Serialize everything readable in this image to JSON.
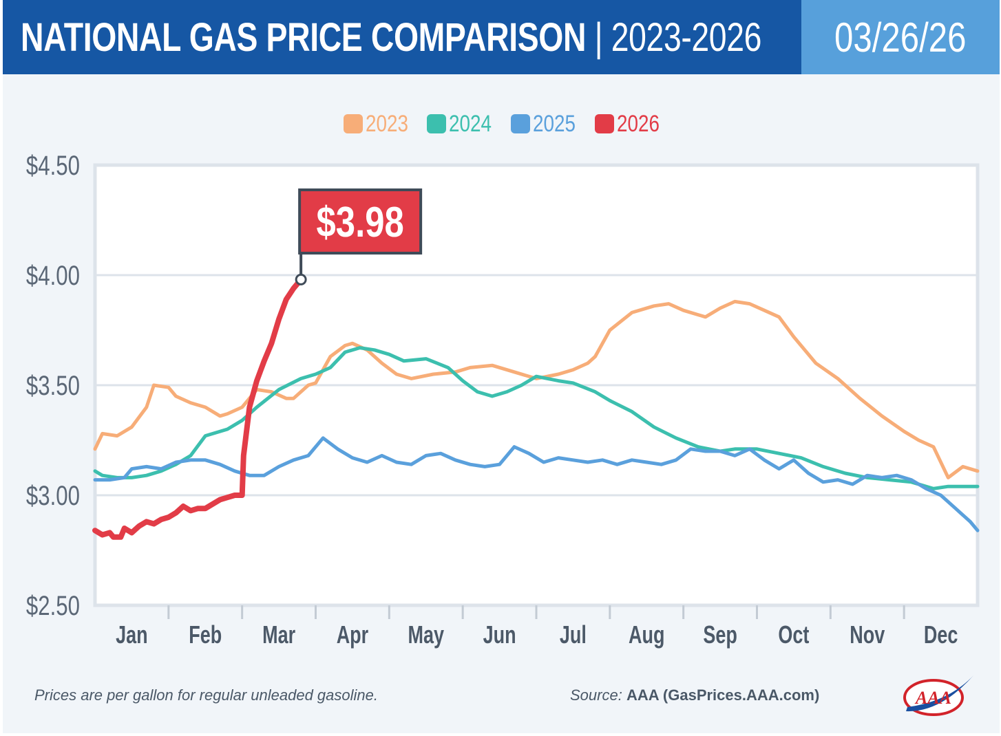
{
  "header": {
    "title": "NATIONAL GAS PRICE COMPARISON",
    "separator": "|",
    "years": "2023-2026",
    "date": "03/26/26",
    "title_bg": "#1657a4",
    "date_bg": "#57a0db"
  },
  "chart_data": {
    "type": "line",
    "title": "",
    "xlabel": "",
    "ylabel": "",
    "x_tick_labels": [
      "Jan",
      "Feb",
      "Mar",
      "Apr",
      "May",
      "Jun",
      "Jul",
      "Aug",
      "Sep",
      "Oct",
      "Nov",
      "Dec"
    ],
    "y_tick_labels": [
      "$4.50",
      "$4.00",
      "$3.50",
      "$3.00",
      "$2.50"
    ],
    "ylim": [
      2.5,
      4.5
    ],
    "xlim": [
      0,
      12
    ],
    "x_unit": "month of year (0 = Jan 1, 12 = Dec 31)",
    "grid": {
      "horizontal": true,
      "vertical": false
    },
    "legend": {
      "placement": "top-center",
      "labels": [
        "2023",
        "2024",
        "2025",
        "2026"
      ]
    },
    "series": [
      {
        "name": "2023",
        "color": "#f7ad78",
        "x": [
          0,
          0.1,
          0.3,
          0.5,
          0.7,
          0.8,
          1.0,
          1.1,
          1.3,
          1.5,
          1.7,
          1.8,
          2.0,
          2.2,
          2.4,
          2.6,
          2.7,
          2.9,
          3.0,
          3.2,
          3.4,
          3.5,
          3.7,
          3.9,
          4.1,
          4.3,
          4.6,
          4.9,
          5.1,
          5.4,
          5.7,
          6.0,
          6.3,
          6.5,
          6.7,
          6.8,
          7.0,
          7.3,
          7.6,
          7.8,
          8.0,
          8.2,
          8.3,
          8.5,
          8.7,
          8.9,
          9.1,
          9.3,
          9.5,
          9.8,
          10.1,
          10.4,
          10.7,
          11.0,
          11.2,
          11.4,
          11.6,
          11.8,
          12.0
        ],
        "values": [
          3.21,
          3.28,
          3.27,
          3.31,
          3.4,
          3.5,
          3.49,
          3.45,
          3.42,
          3.4,
          3.36,
          3.37,
          3.4,
          3.48,
          3.47,
          3.44,
          3.44,
          3.5,
          3.51,
          3.63,
          3.68,
          3.69,
          3.66,
          3.6,
          3.55,
          3.53,
          3.55,
          3.56,
          3.58,
          3.59,
          3.56,
          3.53,
          3.55,
          3.57,
          3.6,
          3.63,
          3.75,
          3.83,
          3.86,
          3.87,
          3.84,
          3.82,
          3.81,
          3.85,
          3.88,
          3.87,
          3.84,
          3.81,
          3.72,
          3.6,
          3.53,
          3.44,
          3.36,
          3.29,
          3.25,
          3.22,
          3.08,
          3.13,
          3.11
        ]
      },
      {
        "name": "2024",
        "color": "#3cbfae",
        "x": [
          0,
          0.1,
          0.3,
          0.5,
          0.7,
          0.9,
          1.1,
          1.3,
          1.5,
          1.8,
          2.0,
          2.2,
          2.5,
          2.8,
          3.0,
          3.2,
          3.4,
          3.6,
          3.8,
          4.0,
          4.2,
          4.5,
          4.8,
          5.0,
          5.2,
          5.4,
          5.6,
          5.8,
          6.0,
          6.3,
          6.5,
          6.8,
          7.0,
          7.3,
          7.6,
          7.9,
          8.2,
          8.5,
          8.7,
          9.0,
          9.3,
          9.6,
          9.9,
          10.2,
          10.5,
          10.8,
          11.1,
          11.4,
          11.6,
          11.8,
          12.0
        ],
        "values": [
          3.11,
          3.09,
          3.08,
          3.08,
          3.09,
          3.11,
          3.14,
          3.18,
          3.27,
          3.3,
          3.34,
          3.4,
          3.48,
          3.53,
          3.55,
          3.58,
          3.65,
          3.67,
          3.66,
          3.64,
          3.61,
          3.62,
          3.58,
          3.52,
          3.47,
          3.45,
          3.47,
          3.5,
          3.54,
          3.52,
          3.51,
          3.47,
          3.43,
          3.38,
          3.31,
          3.26,
          3.22,
          3.2,
          3.21,
          3.21,
          3.19,
          3.17,
          3.13,
          3.1,
          3.08,
          3.07,
          3.06,
          3.03,
          3.04,
          3.04,
          3.04
        ]
      },
      {
        "name": "2025",
        "color": "#5aa0dc",
        "x": [
          0,
          0.2,
          0.4,
          0.5,
          0.7,
          0.9,
          1.1,
          1.3,
          1.5,
          1.7,
          1.9,
          2.1,
          2.3,
          2.5,
          2.7,
          2.9,
          3.1,
          3.3,
          3.5,
          3.7,
          3.9,
          4.1,
          4.3,
          4.5,
          4.7,
          4.9,
          5.1,
          5.3,
          5.5,
          5.7,
          5.9,
          6.1,
          6.3,
          6.5,
          6.7,
          6.9,
          7.1,
          7.3,
          7.5,
          7.7,
          7.9,
          8.1,
          8.3,
          8.5,
          8.7,
          8.9,
          9.1,
          9.3,
          9.5,
          9.7,
          9.9,
          10.1,
          10.3,
          10.5,
          10.7,
          10.9,
          11.1,
          11.3,
          11.5,
          11.7,
          11.9,
          12.0
        ],
        "values": [
          3.07,
          3.07,
          3.08,
          3.12,
          3.13,
          3.12,
          3.15,
          3.16,
          3.16,
          3.14,
          3.11,
          3.09,
          3.09,
          3.13,
          3.16,
          3.18,
          3.26,
          3.21,
          3.17,
          3.15,
          3.18,
          3.15,
          3.14,
          3.18,
          3.19,
          3.16,
          3.14,
          3.13,
          3.14,
          3.22,
          3.19,
          3.15,
          3.17,
          3.16,
          3.15,
          3.16,
          3.14,
          3.16,
          3.15,
          3.14,
          3.16,
          3.21,
          3.2,
          3.2,
          3.18,
          3.21,
          3.16,
          3.12,
          3.16,
          3.1,
          3.06,
          3.07,
          3.05,
          3.09,
          3.08,
          3.09,
          3.07,
          3.03,
          3.0,
          2.94,
          2.88,
          2.84
        ]
      },
      {
        "name": "2026",
        "color": "#e23c47",
        "x": [
          0,
          0.1,
          0.2,
          0.25,
          0.35,
          0.4,
          0.5,
          0.6,
          0.7,
          0.8,
          0.9,
          1.0,
          1.1,
          1.2,
          1.3,
          1.4,
          1.5,
          1.6,
          1.7,
          1.8,
          1.9,
          2.0,
          2.02,
          2.1,
          2.2,
          2.3,
          2.4,
          2.5,
          2.6,
          2.7,
          2.8
        ],
        "values": [
          2.84,
          2.82,
          2.83,
          2.81,
          2.81,
          2.85,
          2.83,
          2.86,
          2.88,
          2.87,
          2.89,
          2.9,
          2.92,
          2.95,
          2.93,
          2.94,
          2.94,
          2.96,
          2.98,
          2.99,
          3.0,
          3.0,
          3.18,
          3.4,
          3.52,
          3.61,
          3.69,
          3.8,
          3.89,
          3.94,
          3.98
        ]
      }
    ],
    "callout": {
      "series": "2026",
      "x": 2.8,
      "value": 3.98,
      "label": "$3.98",
      "color": "#e23c47"
    }
  },
  "footer": {
    "note": "Prices are per gallon for regular unleaded gasoline.",
    "source_label": "Source:",
    "source_value": "AAA (GasPrices.AAA.com)",
    "logo_text": "AAA"
  }
}
